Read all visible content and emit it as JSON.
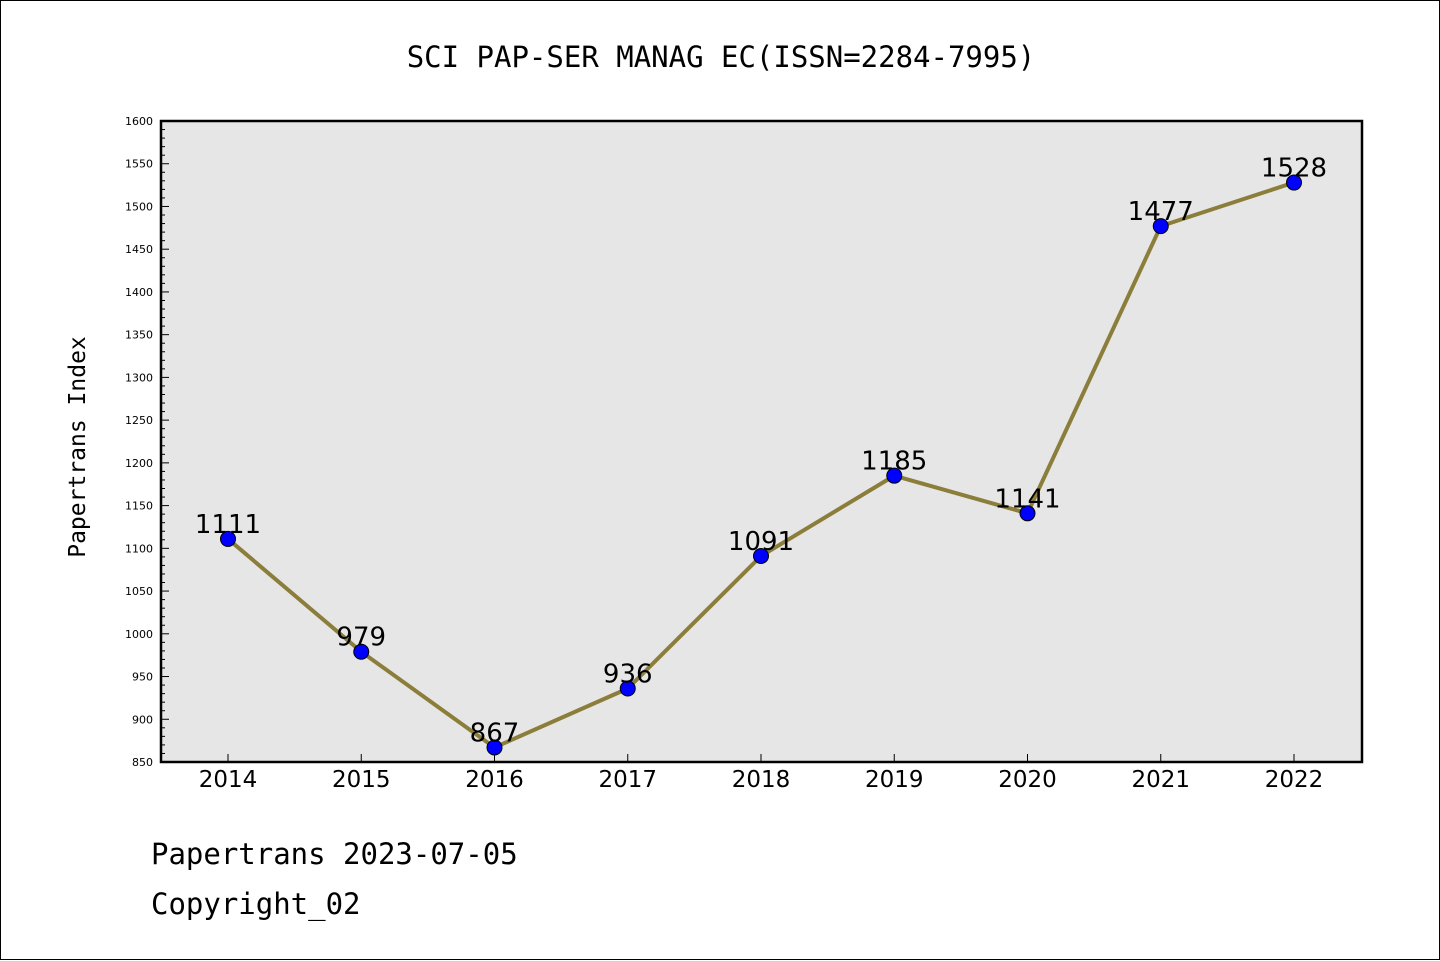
{
  "chart_data": {
    "type": "line",
    "title": "SCI PAP-SER MANAG EC(ISSN=2284-7995)",
    "xlabel": "",
    "ylabel": "Papertrans Index",
    "categories": [
      "2014",
      "2015",
      "2016",
      "2017",
      "2018",
      "2019",
      "2020",
      "2021",
      "2022"
    ],
    "series": [
      {
        "values": [
          1111,
          979,
          867,
          936,
          1091,
          1185,
          1141,
          1477,
          1528
        ]
      }
    ],
    "data_labels": [
      "1111",
      "979",
      "867",
      "936",
      "1091",
      "1185",
      "1141",
      "1477",
      "1528"
    ],
    "ylim": [
      850,
      1600
    ],
    "yticks": [
      850,
      900,
      950,
      1000,
      1050,
      1100,
      1150,
      1200,
      1250,
      1300,
      1350,
      1400,
      1450,
      1500,
      1550,
      1600
    ],
    "grid": false,
    "legend": "none",
    "colors": {
      "plot_background": "#e6e6e6",
      "line": "#8b7d3a",
      "marker": "#0000ff",
      "marker_edge": "#000000"
    }
  },
  "footer": {
    "line1": "Papertrans 2023-07-05",
    "line2": "Copyright_02"
  }
}
